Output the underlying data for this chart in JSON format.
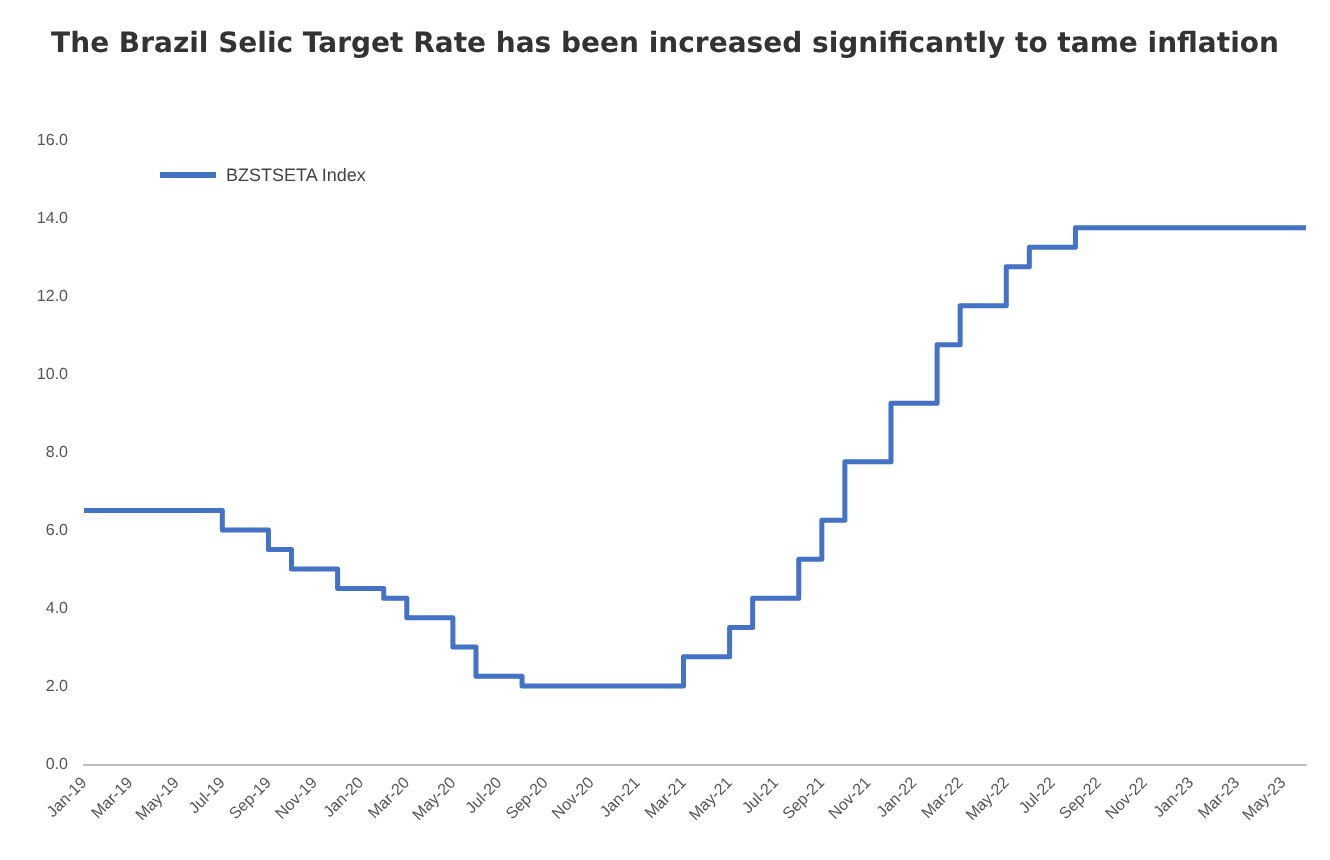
{
  "chart_data": {
    "type": "step",
    "title": "The Brazil Selic Target Rate has been increased significantly to tame inflation",
    "categories": [
      "Jan-19",
      null,
      "Mar-19",
      null,
      "May-19",
      null,
      "Jul-19",
      null,
      "Sep-19",
      null,
      "Nov-19",
      null,
      "Jan-20",
      null,
      "Mar-20",
      null,
      "May-20",
      null,
      "Jul-20",
      null,
      "Sep-20",
      null,
      "Nov-20",
      null,
      "Jan-21",
      null,
      "Mar-21",
      null,
      "May-21",
      null,
      "Jul-21",
      null,
      "Sep-21",
      null,
      "Nov-21",
      null,
      "Jan-22",
      null,
      "Mar-22",
      null,
      "May-22",
      null,
      "Jul-22",
      null,
      "Sep-22",
      null,
      "Nov-22",
      null,
      "Jan-23",
      null,
      "Mar-23",
      null,
      "May-23",
      null
    ],
    "series": [
      {
        "name": "BZSTSETA Index",
        "color": "#4472c4",
        "values": [
          6.5,
          6.5,
          6.5,
          6.5,
          6.5,
          6.5,
          6.0,
          6.0,
          5.5,
          5.0,
          5.0,
          4.5,
          4.5,
          4.25,
          3.75,
          3.75,
          3.0,
          2.25,
          2.25,
          2.0,
          2.0,
          2.0,
          2.0,
          2.0,
          2.0,
          2.0,
          2.75,
          2.75,
          3.5,
          4.25,
          4.25,
          5.25,
          6.25,
          7.75,
          7.75,
          9.25,
          9.25,
          10.75,
          11.75,
          11.75,
          12.75,
          13.25,
          13.25,
          13.75,
          13.75,
          13.75,
          13.75,
          13.75,
          13.75,
          13.75,
          13.75,
          13.75,
          13.75,
          13.75
        ]
      }
    ],
    "ylim": [
      0,
      16
    ],
    "yticks": [
      {
        "value": 0,
        "label": "0.0"
      },
      {
        "value": 2,
        "label": "2.0"
      },
      {
        "value": 4,
        "label": "4.0"
      },
      {
        "value": 6,
        "label": "6.0"
      },
      {
        "value": 8,
        "label": "8.0"
      },
      {
        "value": 10,
        "label": "10.0"
      },
      {
        "value": 12,
        "label": "12.0"
      },
      {
        "value": 14,
        "label": "14.0"
      },
      {
        "value": 16,
        "label": "16.0"
      }
    ],
    "grid": false,
    "legend": "top left",
    "marker": "none",
    "line_style": "solid"
  }
}
